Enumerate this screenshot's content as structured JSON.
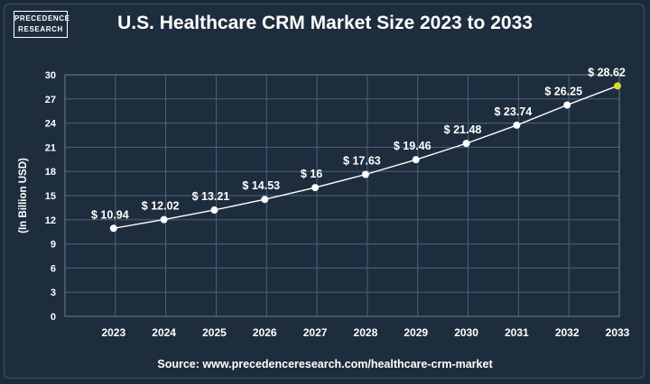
{
  "logo": {
    "line1": "PRECEDENCE",
    "line2": "RESEARCH"
  },
  "colors": {
    "background": "#1e2d3d",
    "grid": "#4d6377",
    "line": "#ffffff",
    "highlight": "#d4e021"
  },
  "source": "Source: www.precedenceresearch.com/healthcare-crm-market",
  "chart_data": {
    "type": "line",
    "title": "U.S. Healthcare CRM Market Size 2023 to 2033",
    "xlabel": "",
    "ylabel": "(In Billion USD)",
    "categories": [
      "2023",
      "2024",
      "2025",
      "2026",
      "2027",
      "2028",
      "2029",
      "2030",
      "2031",
      "2032",
      "2033"
    ],
    "values": [
      10.94,
      12.02,
      13.21,
      14.53,
      16,
      17.63,
      19.46,
      21.48,
      23.74,
      26.25,
      28.62
    ],
    "data_labels": [
      "$ 10.94",
      "$ 12.02",
      "$ 13.21",
      "$ 14.53",
      "$ 16",
      "$ 17.63",
      "$ 19.46",
      "$ 21.48",
      "$ 23.74",
      "$ 26.25",
      "$ 28.62"
    ],
    "yticks": [
      0,
      3,
      6,
      9,
      12,
      15,
      18,
      21,
      24,
      27,
      30
    ],
    "ylim": [
      0,
      30
    ],
    "grid": true
  }
}
